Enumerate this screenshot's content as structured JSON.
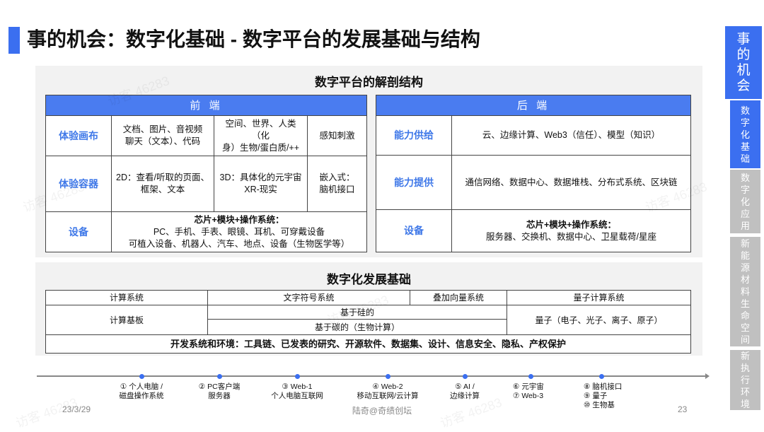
{
  "title": "事的机会：数字化基础 - 数字平台的发展基础与结构",
  "anatomy": {
    "title": "数字平台的解剖结构",
    "frontend": {
      "header": "前 端",
      "rows": [
        {
          "label": "体验画布",
          "cells": [
            "文档、图片、音视频\n聊天（文本）、代码",
            "空间、世界、人类（化\n身）生物/蛋白质/++",
            "感知刺激"
          ]
        },
        {
          "label": "体验容器",
          "cells": [
            "2D：查看/听取的页面、\n框架、文本",
            "3D：具体化的元宇宙\nXR-现实",
            "嵌入式：\n脑机接口"
          ]
        },
        {
          "label": "设备",
          "heading": "芯片+模块+操作系统：",
          "lines": [
            "PC、手机、手表、眼镜、耳机、可穿戴设备",
            "可植入设备、机器人、汽车、地点、设备（生物医学等）"
          ]
        }
      ]
    },
    "backend": {
      "header": "后 端",
      "rows": [
        {
          "label": "能力供给",
          "text": "云、边缘计算、Web3（信任）、模型（知识）"
        },
        {
          "label": "能力提供",
          "text": "通信网络、数据中心、数据堆栈、分布式系统、区块链"
        },
        {
          "label": "设备",
          "heading": "芯片+模块+操作系统：",
          "text": "服务器、交换机、数据中心、卫星载荷/星座"
        }
      ]
    }
  },
  "foundation": {
    "title": "数字化发展基础",
    "headers": [
      "计算系统",
      "文字符号系统",
      "叠加向量系统",
      "量子计算系统"
    ],
    "board": "计算基板",
    "silicon": "基于硅的",
    "carbon": "基于碳的（生物计算）",
    "quantum": "量子（电子、光子、离子、原子）",
    "env": "开发系统和环境：工具链、已发表的研究、开源软件、数据集、设计、信息安全、隐私、产权保护"
  },
  "timeline": [
    [
      "① 个人电脑 /",
      "磁盘操作系统"
    ],
    [
      "② PC客户端",
      "服务器"
    ],
    [
      "③ Web-1",
      "个人电脑互联网"
    ],
    [
      "④ Web-2",
      "移动互联网/云计算"
    ],
    [
      "⑤ AI /",
      "边缘计算"
    ],
    [
      "⑥ 元宇宙",
      "⑦ Web-3"
    ],
    [
      "⑧ 脑机接口",
      "⑨ 量子",
      "⑩ 生物基"
    ]
  ],
  "footer": {
    "date": "23/3/29",
    "center": "陆奇@奇绩创坛",
    "page": "23"
  },
  "nav": [
    {
      "label": "事的机会",
      "active": true
    },
    {
      "label": "数字化基础",
      "active": true
    },
    {
      "label": "数字化应用",
      "active": false
    },
    {
      "label": "新能源材料生命空间",
      "active": false
    },
    {
      "label": "新执行环境",
      "active": false
    }
  ],
  "watermark": "访客 46283",
  "colors": {
    "accent": "#3b6ff0",
    "header": "#4a7cf0",
    "label": "#3f78e8",
    "inactive": "#c0c0c0"
  }
}
